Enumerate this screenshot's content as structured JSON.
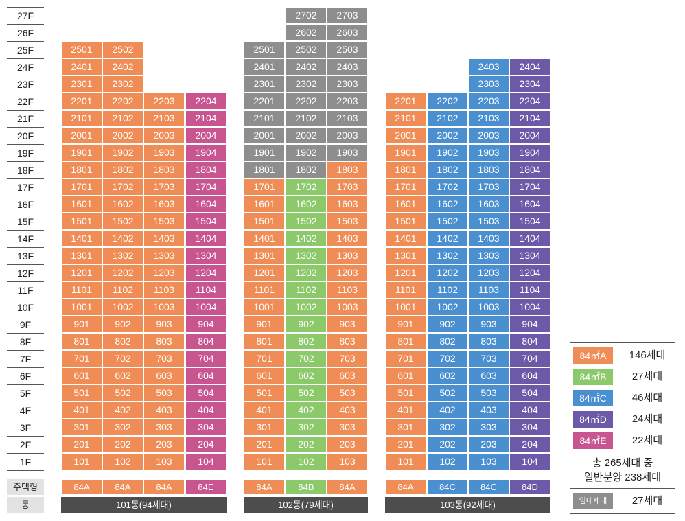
{
  "floors": [
    "27F",
    "26F",
    "25F",
    "24F",
    "23F",
    "22F",
    "21F",
    "20F",
    "19F",
    "18F",
    "17F",
    "16F",
    "15F",
    "14F",
    "13F",
    "12F",
    "11F",
    "10F",
    "9F",
    "8F",
    "7F",
    "6F",
    "5F",
    "4F",
    "3F",
    "2F",
    "1F"
  ],
  "row_labels": {
    "type": "주택형",
    "building": "동"
  },
  "colors": {
    "A": "#f08c55",
    "B": "#8cc96a",
    "C": "#4a8fd0",
    "D": "#6c59a8",
    "E": "#c8558f",
    "rental": "#8e8e8e",
    "building_bar": "#4d4d4d"
  },
  "buildings": [
    {
      "name": "101동(94세대)",
      "lines": [
        {
          "line": "01",
          "type": "84A",
          "top_floor": 25,
          "rental_floors": []
        },
        {
          "line": "02",
          "type": "84A",
          "top_floor": 25,
          "rental_floors": []
        },
        {
          "line": "03",
          "type": "84A",
          "top_floor": 22,
          "rental_floors": []
        },
        {
          "line": "04",
          "type": "84E",
          "top_floor": 22,
          "rental_floors": []
        }
      ]
    },
    {
      "name": "102동(79세대)",
      "lines": [
        {
          "line": "01",
          "type": "84A",
          "top_floor": 25,
          "rental_floors": [
            18,
            19,
            20,
            21,
            22,
            23,
            24,
            25
          ]
        },
        {
          "line": "02",
          "type": "84B",
          "top_floor": 27,
          "rental_floors": [
            18,
            19,
            20,
            21,
            22,
            23,
            24,
            25,
            26,
            27
          ]
        },
        {
          "line": "03",
          "type": "84A",
          "top_floor": 27,
          "rental_floors": [
            19,
            20,
            21,
            22,
            23,
            24,
            25,
            26,
            27
          ]
        }
      ]
    },
    {
      "name": "103동(92세대)",
      "lines": [
        {
          "line": "01",
          "type": "84A",
          "top_floor": 22,
          "rental_floors": []
        },
        {
          "line": "02",
          "type": "84C",
          "top_floor": 22,
          "rental_floors": []
        },
        {
          "line": "03",
          "type": "84C",
          "top_floor": 24,
          "rental_floors": []
        },
        {
          "line": "04",
          "type": "84D",
          "top_floor": 24,
          "rental_floors": []
        }
      ]
    }
  ],
  "legend": {
    "items": [
      {
        "label": "84㎡A",
        "count": "146세대",
        "color_key": "A"
      },
      {
        "label": "84㎡B",
        "count": "27세대",
        "color_key": "B"
      },
      {
        "label": "84㎡C",
        "count": "46세대",
        "color_key": "C"
      },
      {
        "label": "84㎡D",
        "count": "24세대",
        "color_key": "D"
      },
      {
        "label": "84㎡E",
        "count": "22세대",
        "color_key": "E"
      }
    ],
    "total_line1": "총 265세대 중",
    "total_line2": "일반분양 238세대",
    "rental_label": "임대세대",
    "rental_count": "27세대"
  }
}
